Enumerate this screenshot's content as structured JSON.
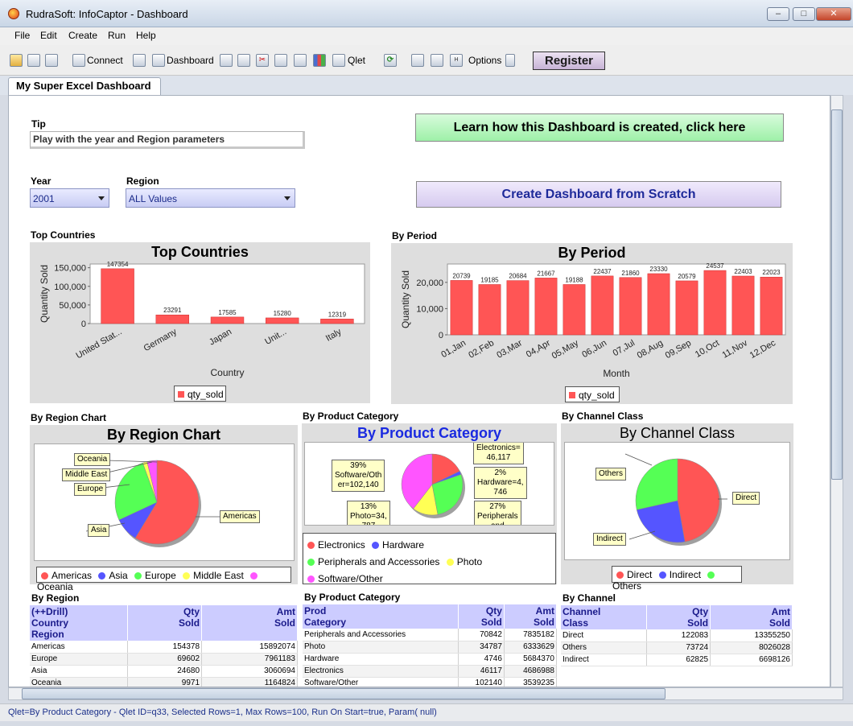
{
  "window": {
    "title": "RudraSoft: InfoCaptor - Dashboard",
    "minimize": "–",
    "maximize": "□",
    "close": "✕"
  },
  "menu": {
    "file": "File",
    "edit": "Edit",
    "create": "Create",
    "run": "Run",
    "help": "Help"
  },
  "toolbar": {
    "connect": "Connect",
    "dashboard": "Dashboard",
    "qlet": "Qlet",
    "options": "Options",
    "register": "Register"
  },
  "tab": {
    "label": "My Super Excel Dashboard"
  },
  "tip": {
    "heading": "Tip",
    "text": "Play with the year and Region parameters"
  },
  "links": {
    "learn": "Learn how this Dashboard is created, click here",
    "create": "Create Dashboard from Scratch"
  },
  "params": {
    "year_label": "Year",
    "year_value": "2001",
    "region_label": "Region",
    "region_value": "ALL Values"
  },
  "colors": {
    "red": "#ff5555",
    "blue": "#5555ff",
    "green": "#55ff55",
    "yellow": "#ffff55",
    "magenta": "#ff55ff",
    "link_blue": "#1e2a9a"
  },
  "chart_data": [
    {
      "type": "bar",
      "panel_label": "Top Countries",
      "title": "Top Countries",
      "xlabel": "Country",
      "ylabel": "Quantity Sold",
      "categories": [
        "United Stat...",
        "Germany",
        "Japan",
        "Unit...",
        "Italy"
      ],
      "series": [
        {
          "name": "qty_sold",
          "values": [
            147354,
            23291,
            17585,
            15280,
            12319
          ]
        }
      ],
      "ylim": [
        0,
        160000
      ],
      "yticks": [
        "150,000",
        "100,000",
        "50,000",
        "0"
      ]
    },
    {
      "type": "bar",
      "panel_label": "By Period",
      "title": "By Period",
      "xlabel": "Month",
      "ylabel": "Quantity Sold",
      "categories": [
        "01,Jan",
        "02,Feb",
        "03,Mar",
        "04,Apr",
        "05,May",
        "06,Jun",
        "07,Jul",
        "08,Aug",
        "09,Sep",
        "10,Oct",
        "11,Nov",
        "12,Dec"
      ],
      "series": [
        {
          "name": "qty_sold",
          "values": [
            20739,
            19185,
            20684,
            21667,
            19188,
            22437,
            21860,
            23330,
            20579,
            24537,
            22403,
            22023
          ]
        }
      ],
      "ylim": [
        0,
        27000
      ],
      "yticks": [
        "20,000",
        "10,000",
        "0"
      ]
    },
    {
      "type": "pie",
      "panel_label": "By Region Chart",
      "title": "By Region Chart",
      "categories": [
        "Americas",
        "Asia",
        "Europe",
        "Middle East",
        "Oceania"
      ],
      "values": [
        154378,
        24680,
        69602,
        4500,
        9971
      ]
    },
    {
      "type": "pie",
      "panel_label": "By Product Category",
      "title": "By Product Category",
      "categories": [
        "Electronics",
        "Hardware",
        "Peripherals and Accessories",
        "Photo",
        "Software/Other"
      ],
      "values": [
        46117,
        4746,
        70842,
        34787,
        102140
      ],
      "callouts": [
        "Electronics=\n46,117",
        "2%\nHardware=4,\n746",
        "27%\nPeripherals\nand",
        "13%\nPhoto=34,\n787",
        "39%\nSoftware/Oth\ner=102,140"
      ]
    },
    {
      "type": "pie",
      "panel_label": "By Channel Class",
      "title": "By Channel Class",
      "categories": [
        "Direct",
        "Indirect",
        "Others"
      ],
      "values": [
        122083,
        62825,
        73724
      ]
    }
  ],
  "tables": {
    "region": {
      "label": "By Region",
      "headers": [
        "(++Drill)\nCountry\nRegion",
        "Qty\nSold",
        "Amt\nSold"
      ],
      "rows": [
        [
          "Americas",
          "154378",
          "15892074"
        ],
        [
          "Europe",
          "69602",
          "7961183"
        ],
        [
          "Asia",
          "24680",
          "3060694"
        ],
        [
          "Oceania",
          "9971",
          "1164824"
        ]
      ]
    },
    "product": {
      "label": "By Product Category",
      "headers": [
        "Prod\nCategory",
        "Qty\nSold",
        "Amt\nSold"
      ],
      "rows": [
        [
          "Peripherals and Accessories",
          "70842",
          "7835182"
        ],
        [
          "Photo",
          "34787",
          "6333629"
        ],
        [
          "Hardware",
          "4746",
          "5684370"
        ],
        [
          "Electronics",
          "46117",
          "4686988"
        ],
        [
          "Software/Other",
          "102140",
          "3539235"
        ]
      ]
    },
    "channel": {
      "label": "By Channel",
      "headers": [
        "Channel\nClass",
        "Qty\nSold",
        "Amt\nSold"
      ],
      "rows": [
        [
          "Direct",
          "122083",
          "13355250"
        ],
        [
          "Others",
          "73724",
          "8026028"
        ],
        [
          "Indirect",
          "62825",
          "6698126"
        ]
      ]
    }
  },
  "status": {
    "text": "Qlet=By Product Category - Qlet ID=q33, Selected Rows=1, Max Rows=100, Run On Start=true, Param( null)"
  }
}
